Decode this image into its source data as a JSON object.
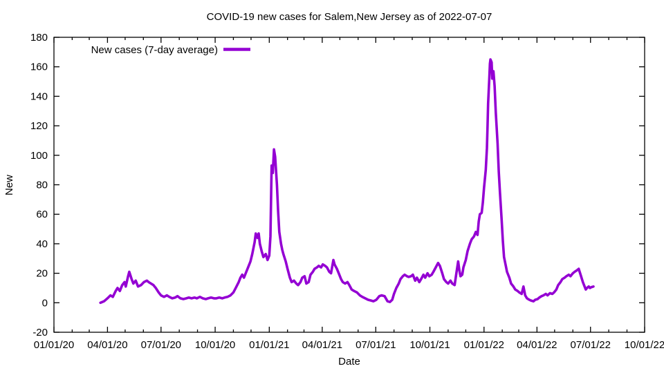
{
  "chart": {
    "title": "COVID-19 new cases for Salem,New Jersey as of 2022-07-07",
    "ylabel": "New",
    "xlabel": "Date",
    "legend_label": "New cases (7-day average)",
    "line_color": "#9400d3",
    "background_color": "#ffffff",
    "text_color": "#000000"
  },
  "chart_data": {
    "type": "line",
    "title": "COVID-19 new cases for Salem,New Jersey as of 2022-07-07",
    "xlabel": "Date",
    "ylabel": "New",
    "legend_position": "top-left-inside",
    "grid": false,
    "ylim": [
      -20,
      180
    ],
    "y_ticks": [
      -20,
      0,
      20,
      40,
      60,
      80,
      100,
      120,
      140,
      160,
      180
    ],
    "x_range": [
      "2020-01-01",
      "2022-10-01"
    ],
    "x_ticks": [
      {
        "label": "01/01/20",
        "date": "2020-01-01"
      },
      {
        "label": "04/01/20",
        "date": "2020-04-01"
      },
      {
        "label": "07/01/20",
        "date": "2020-07-01"
      },
      {
        "label": "10/01/20",
        "date": "2020-10-01"
      },
      {
        "label": "01/01/21",
        "date": "2021-01-01"
      },
      {
        "label": "04/01/21",
        "date": "2021-04-01"
      },
      {
        "label": "07/01/21",
        "date": "2021-07-01"
      },
      {
        "label": "10/01/21",
        "date": "2021-10-01"
      },
      {
        "label": "01/01/22",
        "date": "2022-01-01"
      },
      {
        "label": "04/01/22",
        "date": "2022-04-01"
      },
      {
        "label": "07/01/22",
        "date": "2022-07-01"
      },
      {
        "label": "10/01/22",
        "date": "2022-10-01"
      }
    ],
    "x_minor_tick_interval": "month",
    "series": [
      {
        "name": "New cases (7-day average)",
        "color": "#9400d3",
        "points": [
          [
            "2020-03-20",
            0
          ],
          [
            "2020-03-26",
            1
          ],
          [
            "2020-04-01",
            3
          ],
          [
            "2020-04-06",
            5
          ],
          [
            "2020-04-10",
            4
          ],
          [
            "2020-04-15",
            8
          ],
          [
            "2020-04-18",
            10
          ],
          [
            "2020-04-22",
            8
          ],
          [
            "2020-04-26",
            12
          ],
          [
            "2020-04-30",
            14
          ],
          [
            "2020-05-02",
            11
          ],
          [
            "2020-05-06",
            18
          ],
          [
            "2020-05-08",
            21
          ],
          [
            "2020-05-12",
            16
          ],
          [
            "2020-05-15",
            13
          ],
          [
            "2020-05-19",
            15
          ],
          [
            "2020-05-23",
            11
          ],
          [
            "2020-05-28",
            12
          ],
          [
            "2020-06-02",
            14
          ],
          [
            "2020-06-07",
            15
          ],
          [
            "2020-06-10",
            14
          ],
          [
            "2020-06-14",
            13
          ],
          [
            "2020-06-18",
            12
          ],
          [
            "2020-06-22",
            10
          ],
          [
            "2020-06-27",
            7
          ],
          [
            "2020-07-01",
            5
          ],
          [
            "2020-07-06",
            4
          ],
          [
            "2020-07-11",
            5
          ],
          [
            "2020-07-15",
            4
          ],
          [
            "2020-07-20",
            3
          ],
          [
            "2020-07-25",
            3.5
          ],
          [
            "2020-07-29",
            4.5
          ],
          [
            "2020-08-03",
            3
          ],
          [
            "2020-08-08",
            2.5
          ],
          [
            "2020-08-13",
            3
          ],
          [
            "2020-08-17",
            3.5
          ],
          [
            "2020-08-22",
            3
          ],
          [
            "2020-08-27",
            3.5
          ],
          [
            "2020-08-31",
            3
          ],
          [
            "2020-09-05",
            4
          ],
          [
            "2020-09-10",
            3
          ],
          [
            "2020-09-15",
            2.5
          ],
          [
            "2020-09-19",
            3
          ],
          [
            "2020-09-24",
            3.5
          ],
          [
            "2020-09-29",
            3
          ],
          [
            "2020-10-03",
            3
          ],
          [
            "2020-10-08",
            3.5
          ],
          [
            "2020-10-13",
            3
          ],
          [
            "2020-10-17",
            3.5
          ],
          [
            "2020-10-22",
            4
          ],
          [
            "2020-10-27",
            5
          ],
          [
            "2020-11-01",
            7
          ],
          [
            "2020-11-05",
            10
          ],
          [
            "2020-11-10",
            14
          ],
          [
            "2020-11-13",
            17
          ],
          [
            "2020-11-16",
            19
          ],
          [
            "2020-11-19",
            17
          ],
          [
            "2020-11-23",
            21
          ],
          [
            "2020-11-26",
            24
          ],
          [
            "2020-11-30",
            28
          ],
          [
            "2020-12-03",
            33
          ],
          [
            "2020-12-07",
            41
          ],
          [
            "2020-12-09",
            47
          ],
          [
            "2020-12-12",
            44
          ],
          [
            "2020-12-14",
            47
          ],
          [
            "2020-12-16",
            40
          ],
          [
            "2020-12-19",
            35
          ],
          [
            "2020-12-22",
            31
          ],
          [
            "2020-12-26",
            33
          ],
          [
            "2020-12-29",
            29
          ],
          [
            "2021-01-01",
            32
          ],
          [
            "2021-01-03",
            45
          ],
          [
            "2021-01-05",
            93
          ],
          [
            "2021-01-07",
            88
          ],
          [
            "2021-01-09",
            104
          ],
          [
            "2021-01-11",
            99
          ],
          [
            "2021-01-14",
            80
          ],
          [
            "2021-01-16",
            62
          ],
          [
            "2021-01-18",
            48
          ],
          [
            "2021-01-21",
            40
          ],
          [
            "2021-01-23",
            36
          ],
          [
            "2021-01-25",
            33
          ],
          [
            "2021-01-29",
            28
          ],
          [
            "2021-02-01",
            23
          ],
          [
            "2021-02-05",
            17
          ],
          [
            "2021-02-08",
            14
          ],
          [
            "2021-02-12",
            15
          ],
          [
            "2021-02-16",
            13
          ],
          [
            "2021-02-19",
            12
          ],
          [
            "2021-02-23",
            14
          ],
          [
            "2021-02-26",
            17
          ],
          [
            "2021-03-02",
            18
          ],
          [
            "2021-03-05",
            13
          ],
          [
            "2021-03-09",
            14
          ],
          [
            "2021-03-12",
            19
          ],
          [
            "2021-03-16",
            21
          ],
          [
            "2021-03-19",
            23
          ],
          [
            "2021-03-23",
            24
          ],
          [
            "2021-03-26",
            25
          ],
          [
            "2021-03-30",
            24
          ],
          [
            "2021-04-02",
            26
          ],
          [
            "2021-04-06",
            25
          ],
          [
            "2021-04-09",
            24
          ],
          [
            "2021-04-13",
            21
          ],
          [
            "2021-04-16",
            20
          ],
          [
            "2021-04-20",
            29
          ],
          [
            "2021-04-22",
            26
          ],
          [
            "2021-04-26",
            23
          ],
          [
            "2021-04-29",
            20
          ],
          [
            "2021-05-03",
            16
          ],
          [
            "2021-05-06",
            14
          ],
          [
            "2021-05-10",
            13
          ],
          [
            "2021-05-14",
            14
          ],
          [
            "2021-05-17",
            12
          ],
          [
            "2021-05-21",
            9
          ],
          [
            "2021-05-25",
            8
          ],
          [
            "2021-05-30",
            7
          ],
          [
            "2021-06-04",
            5
          ],
          [
            "2021-06-08",
            4
          ],
          [
            "2021-06-13",
            3
          ],
          [
            "2021-06-18",
            2
          ],
          [
            "2021-06-23",
            1.5
          ],
          [
            "2021-06-27",
            1
          ],
          [
            "2021-07-02",
            2
          ],
          [
            "2021-07-07",
            4.5
          ],
          [
            "2021-07-11",
            5
          ],
          [
            "2021-07-16",
            4.5
          ],
          [
            "2021-07-21",
            1
          ],
          [
            "2021-07-25",
            0.5
          ],
          [
            "2021-07-29",
            2
          ],
          [
            "2021-08-01",
            6
          ],
          [
            "2021-08-05",
            10
          ],
          [
            "2021-08-09",
            13
          ],
          [
            "2021-08-12",
            16
          ],
          [
            "2021-08-16",
            18
          ],
          [
            "2021-08-19",
            19
          ],
          [
            "2021-08-23",
            18
          ],
          [
            "2021-08-26",
            17.5
          ],
          [
            "2021-08-30",
            18
          ],
          [
            "2021-09-02",
            19
          ],
          [
            "2021-09-06",
            15
          ],
          [
            "2021-09-09",
            17
          ],
          [
            "2021-09-13",
            14
          ],
          [
            "2021-09-16",
            16
          ],
          [
            "2021-09-20",
            19
          ],
          [
            "2021-09-23",
            17
          ],
          [
            "2021-09-27",
            20
          ],
          [
            "2021-09-30",
            18
          ],
          [
            "2021-10-04",
            19
          ],
          [
            "2021-10-07",
            21
          ],
          [
            "2021-10-11",
            24
          ],
          [
            "2021-10-15",
            27
          ],
          [
            "2021-10-18",
            25
          ],
          [
            "2021-10-22",
            20
          ],
          [
            "2021-10-25",
            16
          ],
          [
            "2021-10-29",
            14
          ],
          [
            "2021-11-01",
            13
          ],
          [
            "2021-11-05",
            15
          ],
          [
            "2021-11-08",
            13
          ],
          [
            "2021-11-12",
            12
          ],
          [
            "2021-11-15",
            20
          ],
          [
            "2021-11-18",
            28
          ],
          [
            "2021-11-20",
            22
          ],
          [
            "2021-11-22",
            18
          ],
          [
            "2021-11-25",
            19
          ],
          [
            "2021-11-27",
            24
          ],
          [
            "2021-12-01",
            29
          ],
          [
            "2021-12-04",
            35
          ],
          [
            "2021-12-08",
            40
          ],
          [
            "2021-12-11",
            43
          ],
          [
            "2021-12-15",
            45
          ],
          [
            "2021-12-18",
            48
          ],
          [
            "2021-12-21",
            46
          ],
          [
            "2021-12-23",
            55
          ],
          [
            "2021-12-25",
            60
          ],
          [
            "2021-12-28",
            61
          ],
          [
            "2021-12-30",
            68
          ],
          [
            "2022-01-01",
            78
          ],
          [
            "2022-01-04",
            90
          ],
          [
            "2022-01-06",
            105
          ],
          [
            "2022-01-07",
            120
          ],
          [
            "2022-01-08",
            135
          ],
          [
            "2022-01-10",
            152
          ],
          [
            "2022-01-11",
            162
          ],
          [
            "2022-01-12",
            165
          ],
          [
            "2022-01-14",
            163
          ],
          [
            "2022-01-15",
            152
          ],
          [
            "2022-01-17",
            157
          ],
          [
            "2022-01-19",
            147
          ],
          [
            "2022-01-21",
            129
          ],
          [
            "2022-01-24",
            108
          ],
          [
            "2022-01-26",
            89
          ],
          [
            "2022-01-28",
            75
          ],
          [
            "2022-01-31",
            56
          ],
          [
            "2022-02-02",
            42
          ],
          [
            "2022-02-04",
            31
          ],
          [
            "2022-02-07",
            25
          ],
          [
            "2022-02-09",
            21
          ],
          [
            "2022-02-13",
            17
          ],
          [
            "2022-02-16",
            13
          ],
          [
            "2022-02-20",
            11
          ],
          [
            "2022-02-23",
            9
          ],
          [
            "2022-02-27",
            8
          ],
          [
            "2022-03-02",
            7
          ],
          [
            "2022-03-06",
            6
          ],
          [
            "2022-03-09",
            11
          ],
          [
            "2022-03-12",
            5
          ],
          [
            "2022-03-15",
            3
          ],
          [
            "2022-03-19",
            2
          ],
          [
            "2022-03-22",
            1.5
          ],
          [
            "2022-03-26",
            1
          ],
          [
            "2022-03-29",
            2
          ],
          [
            "2022-04-02",
            2.5
          ],
          [
            "2022-04-05",
            3.5
          ],
          [
            "2022-04-09",
            4.5
          ],
          [
            "2022-04-12",
            5
          ],
          [
            "2022-04-16",
            6
          ],
          [
            "2022-04-19",
            5
          ],
          [
            "2022-04-23",
            6.5
          ],
          [
            "2022-04-27",
            6
          ],
          [
            "2022-04-30",
            7
          ],
          [
            "2022-05-04",
            9
          ],
          [
            "2022-05-07",
            12
          ],
          [
            "2022-05-11",
            14
          ],
          [
            "2022-05-14",
            16
          ],
          [
            "2022-05-18",
            17
          ],
          [
            "2022-05-21",
            18
          ],
          [
            "2022-05-25",
            19
          ],
          [
            "2022-05-28",
            18
          ],
          [
            "2022-06-01",
            20
          ],
          [
            "2022-06-04",
            21
          ],
          [
            "2022-06-08",
            22
          ],
          [
            "2022-06-11",
            23
          ],
          [
            "2022-06-15",
            18
          ],
          [
            "2022-06-18",
            14
          ],
          [
            "2022-06-21",
            11
          ],
          [
            "2022-06-23",
            9
          ],
          [
            "2022-06-25",
            10
          ],
          [
            "2022-06-28",
            11
          ],
          [
            "2022-06-30",
            10
          ],
          [
            "2022-07-02",
            10.5
          ],
          [
            "2022-07-06",
            11
          ]
        ]
      }
    ]
  }
}
